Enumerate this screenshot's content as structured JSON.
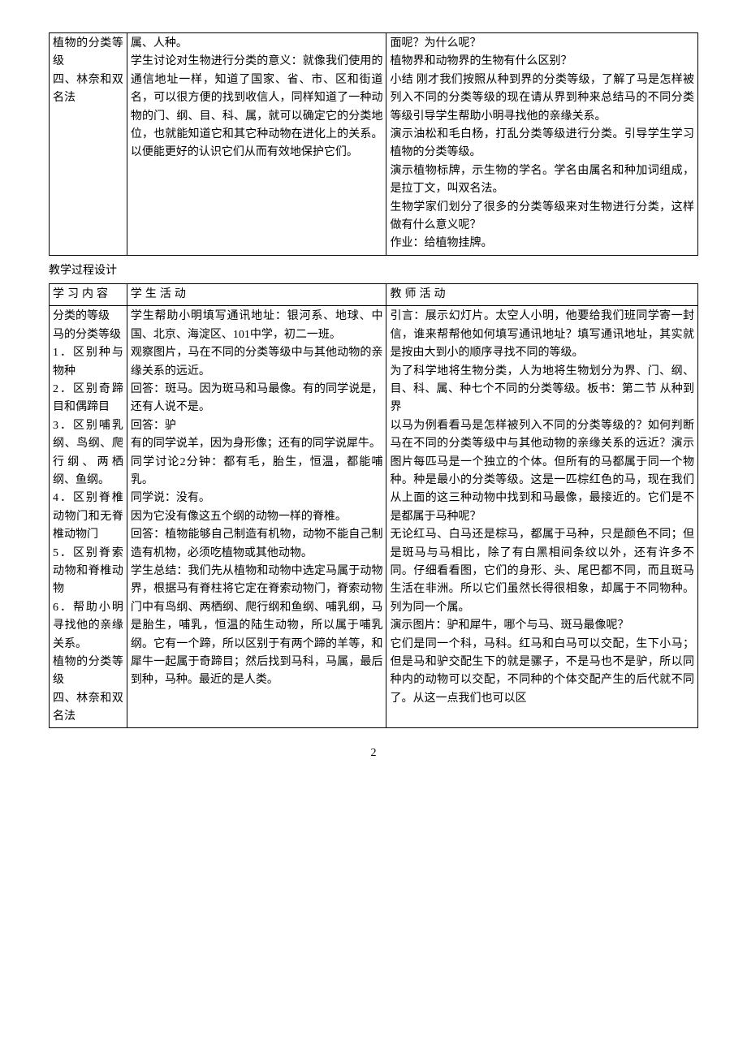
{
  "table1": {
    "rows": [
      {
        "c1": "植物的分类等级\n四、林奈和双名法",
        "c2": "属、人种。\n学生讨论对生物进行分类的意义：就像我们使用的通信地址一样，知道了国家、省、市、区和街道名，可以很方便的找到收信人，同样知道了一种动物的门、纲、目、科、属，就可以确定它的分类地位，也就能知道它和其它种动物在进化上的关系。以便能更好的认识它们从而有效地保护它们。",
        "c3": "面呢？为什么呢？\n植物界和动物界的生物有什么区别？\n小结 刚才我们按照从种到界的分类等级，了解了马是怎样被列入不同的分类等级的现在请从界到种来总结马的不同分类等级引导学生帮助小明寻找他的亲缘关系。\n演示油松和毛白杨，打乱分类等级进行分类。引导学生学习植物的分类等级。\n演示植物标牌，示生物的学名。学名由属名和种加词组成，是拉丁文，叫双名法。\n生物学家们划分了很多的分类等级来对生物进行分类，这样做有什么意义呢？\n作业：给植物挂牌。"
      }
    ]
  },
  "section2_heading": "教学过程设计",
  "table2": {
    "header": {
      "c1": "学习内容",
      "c2": "学生活动",
      "c3": "教师活动"
    },
    "rows": [
      {
        "c1": "分类的等级\n马的分类等级\n1．区别种与物种\n2．区别奇蹄目和偶蹄目\n3．区别哺乳纲、鸟纲、爬行纲、两栖纲、鱼纲。\n4．区别脊椎动物门和无脊椎动物门\n5．区别脊索动物和脊椎动物\n6．帮助小明寻找他的亲缘关系。\n植物的分类等级\n四、林奈和双名法",
        "c2": "学生帮助小明填写通讯地址：银河系、地球、中国、北京、海淀区、101中学，初二一班。\n观察图片，马在不同的分类等级中与其他动物的亲缘关系的远近。\n回答：斑马。因为斑马和马最像。有的同学说是，还有人说不是。\n回答：驴\n有的同学说羊，因为身形像；还有的同学说犀牛。\n同学讨论2分钟：都有毛，胎生，恒温，都能哺乳。\n同学说：没有。\n因为它没有像这五个纲的动物一样的脊椎。\n回答：植物能够自己制造有机物，动物不能自己制造有机物，必须吃植物或其他动物。\n学生总结：我们先从植物和动物中选定马属于动物界，根据马有脊柱将它定在脊索动物门，脊索动物门中有鸟纲、两栖纲、爬行纲和鱼纲、哺乳纲，马是胎生，哺乳，恒温的陆生动物，所以属于哺乳纲。它有一个蹄，所以区别于有两个蹄的羊等，和犀牛一起属于奇蹄目；然后找到马科，马属，最后到种，马种。最近的是人类。",
        "c3": "引言：展示幻灯片。太空人小明，他要给我们班同学寄一封信，谁来帮帮他如何填写通讯地址？填写通讯地址，其实就是按由大到小的顺序寻找不同的等级。\n为了科学地将生物分类，人为地将生物划分为界、门、纲、目、科、属、种七个不同的分类等级。板书：第二节 从种到界\n以马为例看看马是怎样被列入不同的分类等级的？如何判断马在不同的分类等级中与其他动物的亲缘关系的远近？演示图片每匹马是一个独立的个体。但所有的马都属于同一个物种。种是最小的分类等级。这是一匹棕红色的马，现在我们从上面的这三种动物中找到和马最像，最接近的。它们是不是都属于马种呢？\n无论红马、白马还是棕马，都属于马种，只是颜色不同；但是斑马与马相比，除了有白黑相间条纹以外，还有许多不同。仔细看看图，它们的身形、头、尾巴都不同，而且斑马生活在非洲。所以它们虽然长得很相象，却属于不同物种。列为同一个属。\n演示图片：驴和犀牛，哪个与马、斑马最像呢？\n它们是同一个科，马科。红马和白马可以交配，生下小马；但是马和驴交配生下的就是骡子，不是马也不是驴，所以同种内的动物可以交配，不同种的个体交配产生的后代就不同了。从这一点我们也可以区"
      }
    ]
  },
  "page_number": "2"
}
